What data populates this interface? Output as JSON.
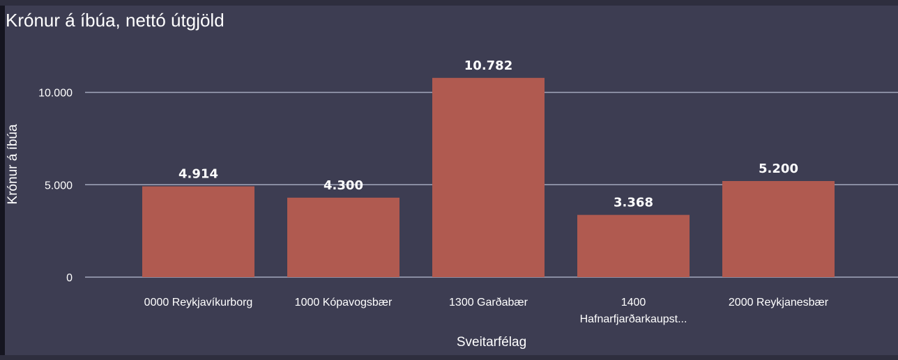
{
  "chart_data": {
    "type": "bar",
    "title": "Krónur á íbúa, nettó útgjöld",
    "xlabel": "Sveitarfélag",
    "ylabel": "Krónur á íbúa",
    "categories": [
      [
        "0000 Reykjavíkurborg"
      ],
      [
        "1000 Kópavogsbær"
      ],
      [
        "1300 Garðabær"
      ],
      [
        "1400",
        "Hafnarfjarðarkaupst..."
      ],
      [
        "2000 Reykjanesbær"
      ]
    ],
    "values": [
      4914,
      4300,
      10782,
      3368,
      5200
    ],
    "value_labels": [
      "4.914",
      "4.300",
      "10.782",
      "3.368",
      "5.200"
    ],
    "ylim": [
      0,
      10782
    ],
    "yticks": [
      0,
      5000,
      10000
    ],
    "ytick_labels": [
      "0",
      "5.000",
      "10.000"
    ],
    "grid": true,
    "bar_color": "#b05a50"
  }
}
